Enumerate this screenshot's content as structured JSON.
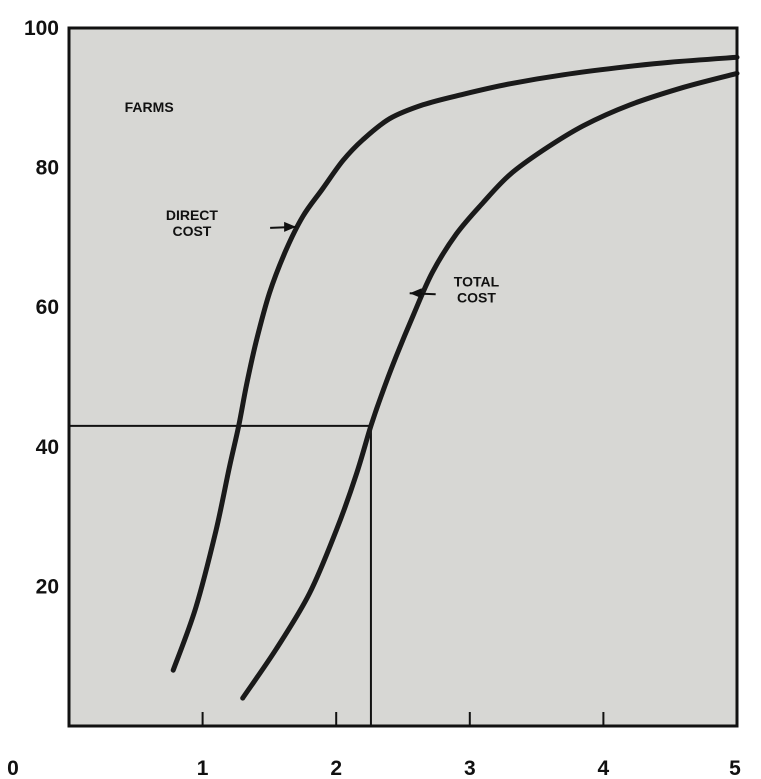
{
  "chart_data": {
    "type": "line",
    "title": "",
    "xlabel": "",
    "ylabel": "",
    "xlim": [
      0,
      5
    ],
    "ylim": [
      0,
      100
    ],
    "x_ticks": [
      "0",
      "1",
      "2",
      "3",
      "4",
      "5"
    ],
    "y_ticks": [
      "20",
      "40",
      "60",
      "80",
      "100"
    ],
    "grid": false,
    "legend": "none",
    "background_color": "#d7d7d4",
    "line_color": "#1a1a1a",
    "series": [
      {
        "x": [
          0.78,
          0.95,
          1.1,
          1.2,
          1.27,
          1.33,
          1.4,
          1.5,
          1.62,
          1.75,
          1.9,
          2.05,
          2.2,
          2.4,
          2.65,
          2.95,
          3.3,
          3.7,
          4.1,
          4.5,
          5.0
        ],
        "y": [
          8,
          17,
          28,
          37,
          43,
          49,
          55,
          62,
          68,
          73,
          77,
          81,
          84,
          87,
          89,
          90.5,
          92,
          93.3,
          94.3,
          95.1,
          95.8
        ]
      },
      {
        "x": [
          1.3,
          1.55,
          1.8,
          2.0,
          2.15,
          2.26,
          2.35,
          2.45,
          2.58,
          2.72,
          2.9,
          3.1,
          3.3,
          3.55,
          3.85,
          4.2,
          4.6,
          5.0
        ],
        "y": [
          4,
          11,
          19,
          28,
          36,
          43,
          48,
          53,
          59,
          65,
          70.5,
          75,
          79,
          82.5,
          86,
          89,
          91.5,
          93.5
        ]
      }
    ],
    "reference_lines": [
      {
        "y": 43,
        "x_from": 0,
        "x_to": 2.26
      },
      {
        "x": 2.26,
        "y_from": 0,
        "y_to": 43
      }
    ],
    "annotations": [
      {
        "text": "FARMS",
        "x": 0.6,
        "y": 88
      },
      {
        "text": "DIRECT\nCOST",
        "x": 0.92,
        "y": 72.5,
        "arrow_to": [
          1.7,
          71.5
        ]
      },
      {
        "text": "TOTAL\nCOST",
        "x": 3.05,
        "y": 63,
        "arrow_to": [
          2.55,
          62
        ]
      }
    ]
  }
}
